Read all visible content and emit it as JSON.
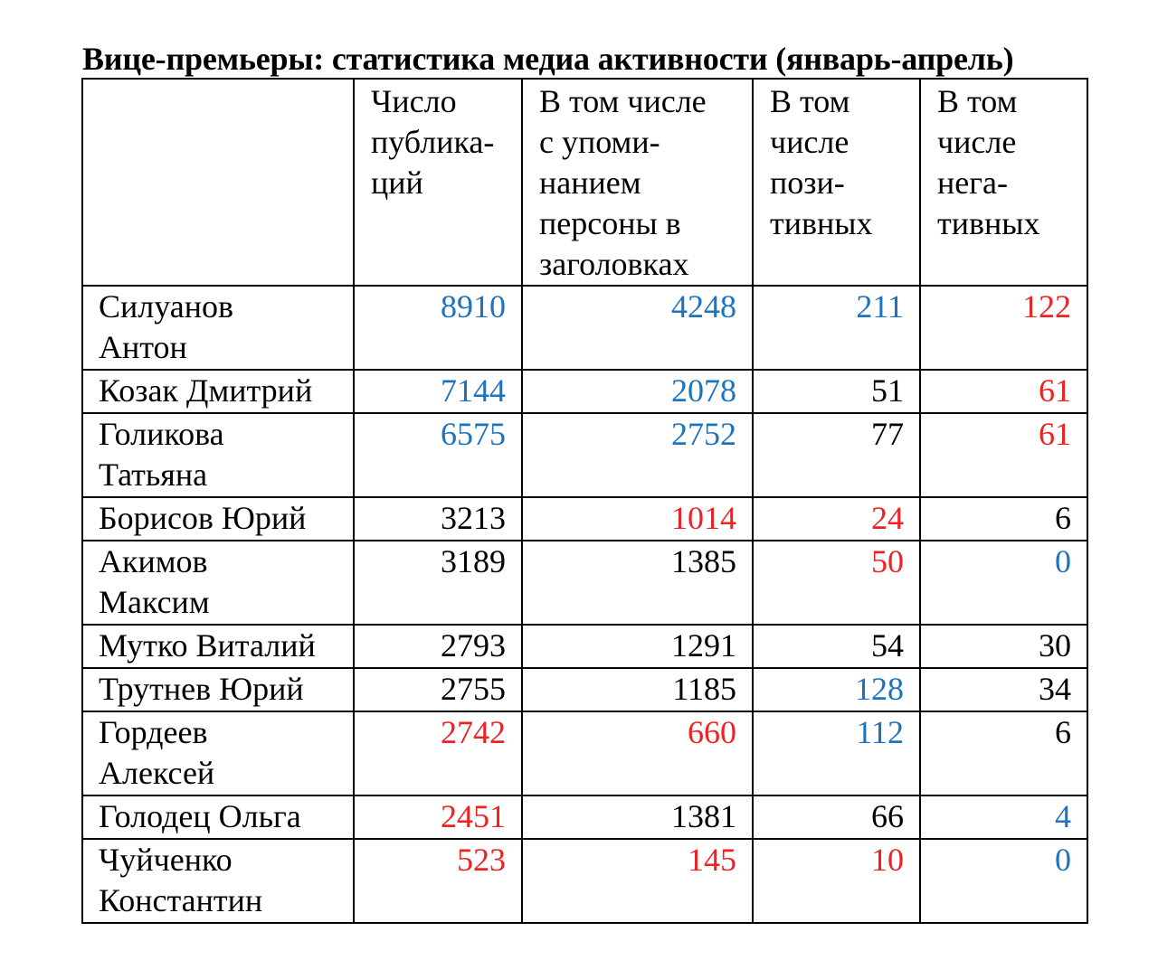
{
  "title": "Вице-премьеры: статистика медиа активности (январь-апрель)",
  "colors": {
    "neutral": "#000000",
    "blue": "#1e73be",
    "red": "#ee2222"
  },
  "headers": [
    [
      "Число",
      "публика-",
      "ций"
    ],
    [
      "В том числе",
      "с упоми-",
      "нанием",
      "персоны в",
      "заголовках"
    ],
    [
      "В том",
      "числе",
      "пози-",
      "тивных"
    ],
    [
      "В том",
      "числе",
      "нега-",
      "тивных"
    ]
  ],
  "rows": [
    {
      "name": [
        "Силуанов",
        "Антон"
      ],
      "values": [
        "8910",
        "4248",
        "211",
        "122"
      ],
      "colors": [
        "blue",
        "blue",
        "blue",
        "red"
      ]
    },
    {
      "name": [
        "Козак Дмитрий"
      ],
      "values": [
        "7144",
        "2078",
        "51",
        "61"
      ],
      "colors": [
        "blue",
        "blue",
        "black",
        "red"
      ]
    },
    {
      "name": [
        "Голикова",
        "Татьяна"
      ],
      "values": [
        "6575",
        "2752",
        "77",
        "61"
      ],
      "colors": [
        "blue",
        "blue",
        "black",
        "red"
      ]
    },
    {
      "name": [
        "Борисов Юрий"
      ],
      "values": [
        "3213",
        "1014",
        "24",
        "6"
      ],
      "colors": [
        "black",
        "red",
        "red",
        "black"
      ]
    },
    {
      "name": [
        "Акимов",
        "Максим"
      ],
      "values": [
        "3189",
        "1385",
        "50",
        "0"
      ],
      "colors": [
        "black",
        "black",
        "red",
        "blue"
      ]
    },
    {
      "name": [
        "Мутко Виталий"
      ],
      "values": [
        "2793",
        "1291",
        "54",
        "30"
      ],
      "colors": [
        "black",
        "black",
        "black",
        "black"
      ]
    },
    {
      "name": [
        "Трутнев Юрий"
      ],
      "values": [
        "2755",
        "1185",
        "128",
        "34"
      ],
      "colors": [
        "black",
        "black",
        "blue",
        "black"
      ]
    },
    {
      "name": [
        "Гордеев",
        "Алексей"
      ],
      "values": [
        "2742",
        "660",
        "112",
        "6"
      ],
      "colors": [
        "red",
        "red",
        "blue",
        "black"
      ]
    },
    {
      "name": [
        "Голодец Ольга"
      ],
      "values": [
        "2451",
        "1381",
        "66",
        "4"
      ],
      "colors": [
        "red",
        "black",
        "black",
        "blue"
      ]
    },
    {
      "name": [
        "Чуйченко",
        "Константин"
      ],
      "values": [
        "523",
        "145",
        "10",
        "0"
      ],
      "colors": [
        "red",
        "red",
        "red",
        "blue"
      ]
    }
  ]
}
